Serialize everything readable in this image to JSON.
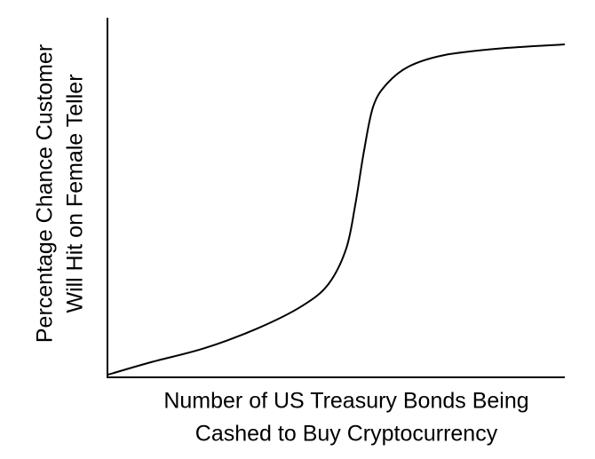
{
  "chart_data": {
    "type": "line",
    "xlabel": [
      "Number of US Treasury Bonds Being",
      "Cashed to Buy Cryptocurrency"
    ],
    "ylabel": [
      "Percentage Chance Customer",
      "Will Hit on Female Teller"
    ],
    "xlim": [
      0,
      100
    ],
    "ylim": [
      0,
      100
    ],
    "x": [
      0,
      9.5,
      21.2,
      32.8,
      42.5,
      48.3,
      52.2,
      54.2,
      56.1,
      58.1,
      61,
      65.8,
      73.6,
      85.2,
      100
    ],
    "series": [
      {
        "color": "#000000",
        "values": [
          0.7,
          4.2,
          8.1,
          13.6,
          19.8,
          25.9,
          35.8,
          48.1,
          63,
          75.3,
          81.5,
          86.4,
          89.6,
          91.4,
          92.6
        ]
      }
    ]
  }
}
